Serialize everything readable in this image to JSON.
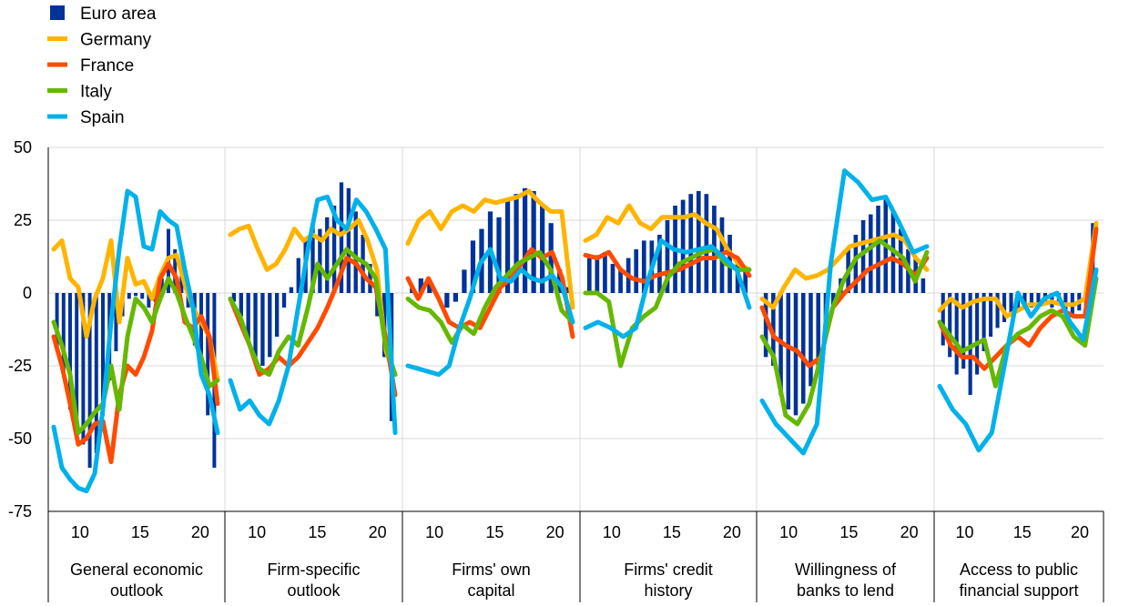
{
  "chart_data": {
    "type": "bar+line",
    "ylim": [
      -75,
      50
    ],
    "yticks": [
      50,
      25,
      0,
      -25,
      -50,
      -75
    ],
    "xticks": [
      "10",
      "15",
      "20"
    ],
    "grid": true,
    "legend_position": "top-left",
    "colors": {
      "Euro area": "#003299",
      "Germany": "#ffb400",
      "France": "#ff4b00",
      "Italy": "#65b800",
      "Spain": "#00b1ea"
    },
    "legend": [
      {
        "name": "Euro area",
        "kind": "bar",
        "color": "#003299"
      },
      {
        "name": "Germany",
        "kind": "line",
        "color": "#ffb400"
      },
      {
        "name": "France",
        "kind": "line",
        "color": "#ff4b00"
      },
      {
        "name": "Italy",
        "kind": "line",
        "color": "#65b800"
      },
      {
        "name": "Spain",
        "kind": "line",
        "color": "#00b1ea"
      }
    ],
    "panels": [
      {
        "label": [
          "General economic",
          "outlook"
        ],
        "euro_area": [
          -20,
          -28,
          -40,
          -47,
          -52,
          -60,
          -55,
          -42,
          -30,
          -20,
          -8,
          -2,
          -1,
          -2,
          -5,
          -3,
          5,
          22,
          15,
          6,
          -5,
          -18,
          -28,
          -42,
          -60
        ],
        "series": {
          "Germany": [
            15,
            18,
            5,
            2,
            -15,
            -2,
            5,
            18,
            -10,
            12,
            3,
            4,
            -2,
            6,
            12,
            13,
            3,
            -5,
            -10,
            -15,
            -30
          ],
          "France": [
            -15,
            -25,
            -38,
            -52,
            -50,
            -45,
            -44,
            -58,
            -35,
            -25,
            -28,
            -22,
            -13,
            5,
            10,
            5,
            -10,
            -12,
            -8,
            -15,
            -38
          ],
          "Italy": [
            -10,
            -18,
            -28,
            -48,
            -45,
            -41,
            -38,
            -25,
            -40,
            -15,
            -2,
            -5,
            -10,
            -2,
            5,
            0,
            -8,
            -15,
            -22,
            -32,
            -30
          ],
          "Spain": [
            -46,
            -60,
            -64,
            -67,
            -68,
            -62,
            -40,
            -10,
            15,
            35,
            33,
            16,
            15,
            28,
            25,
            23,
            8,
            -5,
            -28,
            -35,
            -48
          ]
        }
      },
      {
        "label": [
          "Firm-specific",
          "outlook"
        ],
        "euro_area": [
          -3,
          -8,
          -16,
          -22,
          -25,
          -22,
          -15,
          -5,
          2,
          12,
          18,
          24,
          22,
          26,
          30,
          38,
          36,
          28,
          20,
          10,
          -8,
          -22,
          -44
        ],
        "series": {
          "Germany": [
            20,
            22,
            23,
            15,
            8,
            10,
            15,
            22,
            18,
            20,
            18,
            22,
            20,
            22,
            25,
            18,
            8,
            -20,
            -28
          ],
          "France": [
            -2,
            -10,
            -18,
            -28,
            -26,
            -22,
            -25,
            -22,
            -17,
            -12,
            -5,
            3,
            12,
            10,
            5,
            2,
            -15,
            -35
          ],
          "Italy": [
            -2,
            -8,
            -18,
            -26,
            -28,
            -20,
            -15,
            -18,
            -5,
            10,
            5,
            10,
            15,
            12,
            10,
            5,
            -18,
            -28
          ],
          "Spain": [
            -30,
            -40,
            -37,
            -42,
            -45,
            -37,
            -25,
            -5,
            15,
            32,
            33,
            25,
            22,
            32,
            28,
            22,
            15,
            -48
          ]
        }
      },
      {
        "label": [
          "Firms' own",
          "capital"
        ],
        "euro_area": [
          2,
          5,
          4,
          0,
          -5,
          -3,
          8,
          18,
          22,
          28,
          26,
          32,
          34,
          36,
          35,
          30,
          24,
          8,
          2
        ],
        "series": {
          "Germany": [
            17,
            25,
            28,
            22,
            28,
            30,
            28,
            32,
            31,
            32,
            33,
            35,
            31,
            28,
            28,
            -5
          ],
          "France": [
            5,
            -2,
            5,
            -2,
            -10,
            -12,
            -10,
            -12,
            -5,
            2,
            5,
            10,
            15,
            12,
            14,
            5,
            -15
          ],
          "Italy": [
            -2,
            -5,
            -6,
            -10,
            -17,
            -11,
            -14,
            -5,
            2,
            6,
            10,
            12,
            14,
            8,
            -6,
            -10
          ],
          "Spain": [
            -25,
            -26,
            -27,
            -28,
            -25,
            -12,
            -2,
            10,
            15,
            5,
            4,
            8,
            5,
            4,
            6,
            2,
            -10
          ]
        }
      },
      {
        "label": [
          "Firms' credit",
          "history"
        ],
        "euro_area": [
          12,
          13,
          14,
          10,
          8,
          12,
          15,
          18,
          18,
          20,
          25,
          30,
          32,
          34,
          35,
          34,
          30,
          26,
          20,
          12,
          8
        ],
        "series": {
          "Germany": [
            18,
            20,
            26,
            24,
            30,
            24,
            22,
            26,
            26,
            26,
            27,
            24,
            22,
            15,
            10,
            8
          ],
          "France": [
            13,
            12,
            14,
            8,
            5,
            4,
            6,
            7,
            8,
            10,
            12,
            12,
            14,
            12,
            6
          ],
          "Italy": [
            0,
            0,
            -3,
            -25,
            -12,
            -8,
            -5,
            5,
            10,
            12,
            14,
            15,
            10,
            8,
            8
          ],
          "Spain": [
            -12,
            -10,
            -12,
            -15,
            -12,
            5,
            18,
            15,
            14,
            15,
            16,
            12,
            8,
            -5
          ]
        }
      },
      {
        "label": [
          "Willingness of",
          "banks to lend"
        ],
        "euro_area": [
          -22,
          -25,
          -35,
          -40,
          -42,
          -38,
          -32,
          -25,
          -15,
          -5,
          5,
          15,
          20,
          25,
          27,
          30,
          32,
          28,
          22,
          15,
          12,
          5
        ],
        "series": {
          "Germany": [
            -2,
            -5,
            2,
            8,
            5,
            6,
            8,
            12,
            16,
            17,
            18,
            19,
            20,
            18,
            12,
            8
          ],
          "France": [
            -5,
            -15,
            -18,
            -20,
            -25,
            -22,
            -5,
            0,
            4,
            8,
            10,
            12,
            10,
            6,
            12
          ],
          "Italy": [
            -15,
            -22,
            -42,
            -45,
            -38,
            -22,
            -5,
            5,
            12,
            15,
            18,
            15,
            12,
            4,
            14
          ],
          "Spain": [
            -37,
            -45,
            -50,
            -55,
            -45,
            10,
            42,
            38,
            32,
            33,
            24,
            14,
            16
          ]
        }
      },
      {
        "label": [
          "Access to public",
          "financial support"
        ],
        "euro_area": [
          -18,
          -22,
          -28,
          -26,
          -35,
          -28,
          -20,
          -15,
          -12,
          -10,
          -8,
          -6,
          -5,
          -5,
          -4,
          -4,
          -5,
          -4,
          -6,
          -8,
          -6,
          -5,
          24
        ],
        "series": {
          "Germany": [
            -6,
            -2,
            -5,
            -3,
            -2,
            -2,
            -8,
            -6,
            -4,
            -4,
            -3,
            -4,
            -4,
            -2,
            24
          ],
          "France": [
            -10,
            -18,
            -22,
            -22,
            -26,
            -22,
            -18,
            -15,
            -18,
            -12,
            -8,
            -6,
            -8,
            -8,
            22
          ],
          "Italy": [
            -10,
            -15,
            -20,
            -18,
            -16,
            -32,
            -18,
            -14,
            -12,
            -8,
            -6,
            -8,
            -15,
            -18,
            5
          ],
          "Spain": [
            -32,
            -40,
            -45,
            -54,
            -48,
            -24,
            0,
            -8,
            -2,
            0,
            -10,
            -16,
            8
          ]
        }
      }
    ]
  }
}
